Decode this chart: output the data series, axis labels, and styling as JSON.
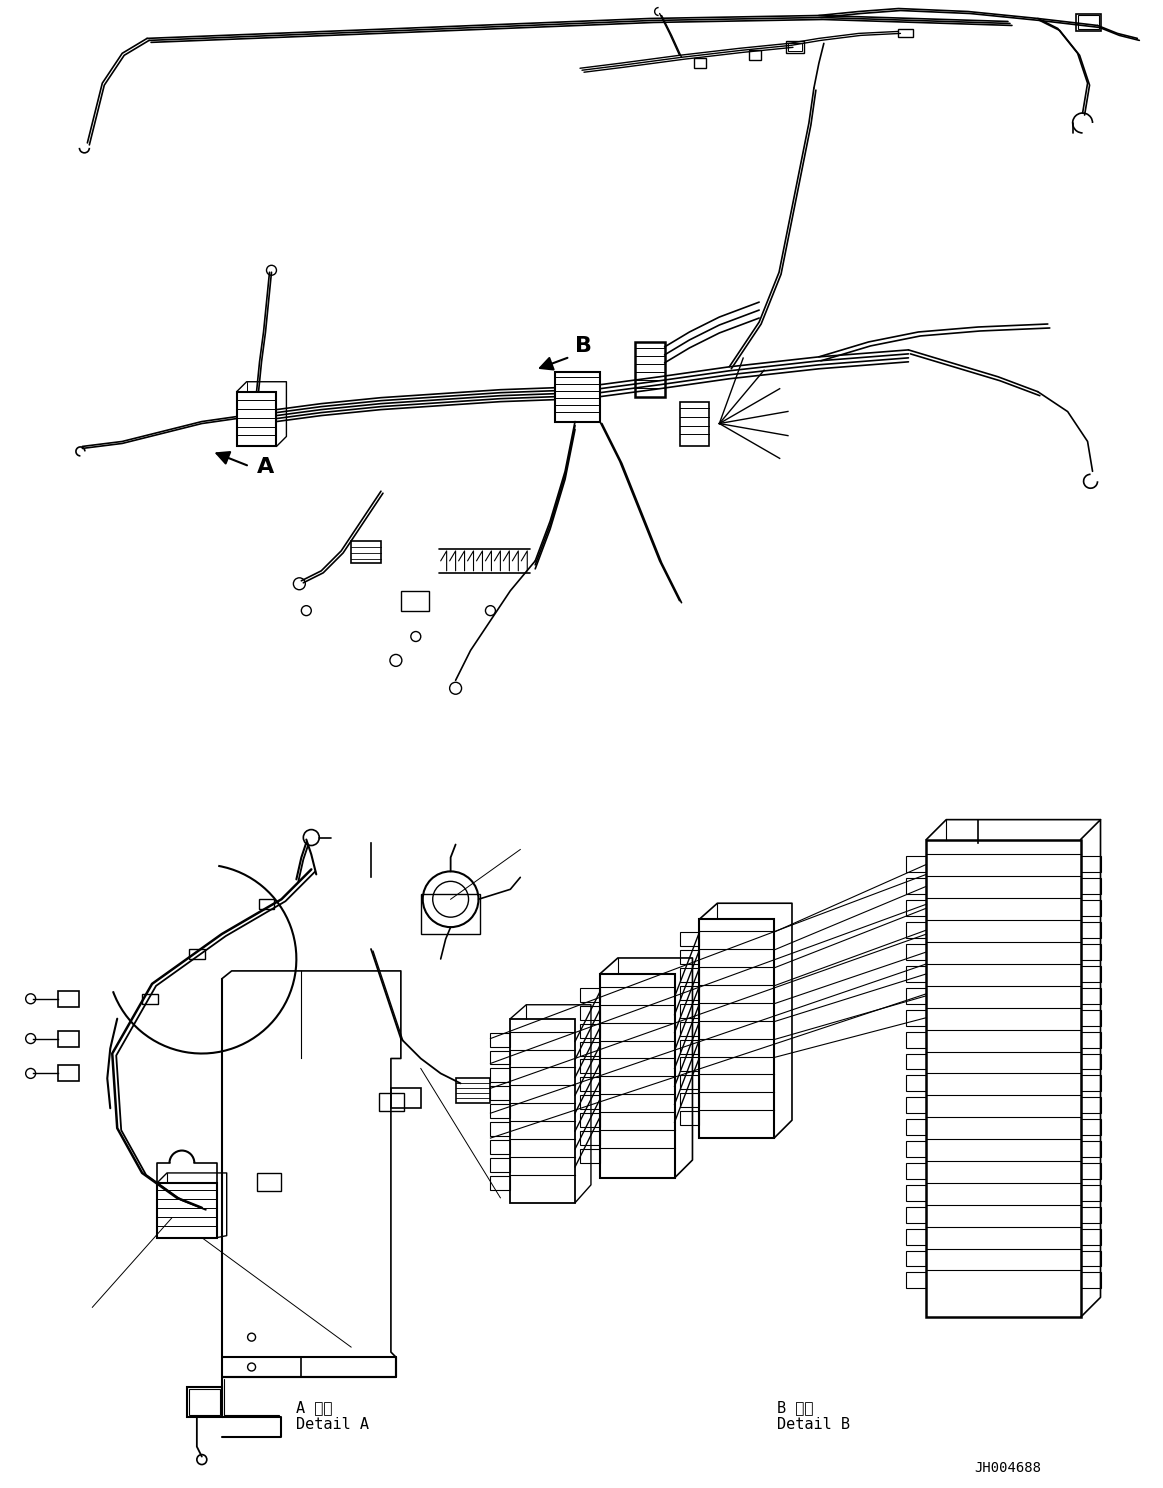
{
  "background_color": "#ffffff",
  "fig_width": 11.63,
  "fig_height": 14.88,
  "dpi": 100,
  "label_A": "A",
  "label_B": "B",
  "detail_A_ja": "A 詳細",
  "detail_A_en": "Detail A",
  "detail_B_ja": "B 詳細",
  "detail_B_en": "Detail B",
  "part_number": "JH004688",
  "line_color": "#000000",
  "line_width": 1.0
}
